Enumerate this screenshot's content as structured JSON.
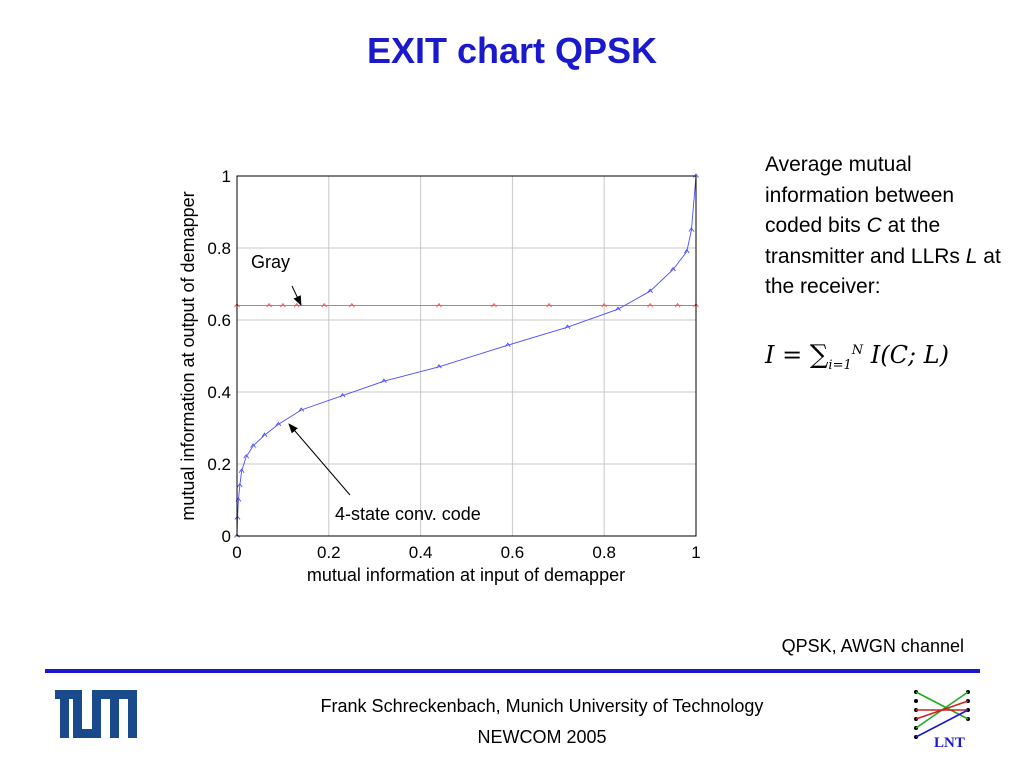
{
  "slide": {
    "title": "EXIT chart QPSK",
    "description": {
      "p1": "Average mutual information between coded bits ",
      "c": "C",
      "p2": " at the transmitter and LLRs ",
      "l": "L",
      "p3": " at the receiver:"
    },
    "formula": {
      "lhs": "I = ",
      "sum": "∑",
      "sub": "i=1",
      "sup": "N",
      "rhs": " I(C; L)"
    },
    "footnote": "QPSK, AWGN channel",
    "footer_line1": "Frank Schreckenbach, Munich University of Technology",
    "footer_line2": "NEWCOM 2005",
    "logo_right_text": "LNT"
  },
  "colors": {
    "title": "#1a1acc",
    "divider": "#1a1acc",
    "gray_series": "#ff4d4d",
    "code_series": "#4d4dff",
    "tum_logo": "#1a4a8c"
  },
  "chart_data": {
    "type": "line",
    "xlabel": "mutual information at input of demapper",
    "ylabel": "mutual information at output of demapper",
    "xlim": [
      0,
      1
    ],
    "ylim": [
      0,
      1
    ],
    "xticks": [
      "0",
      "0.2",
      "0.4",
      "0.6",
      "0.8",
      "1"
    ],
    "yticks": [
      "0",
      "0.2",
      "0.4",
      "0.6",
      "0.8",
      "1"
    ],
    "grid": true,
    "series": [
      {
        "name": "Gray",
        "x": [
          0,
          0.07,
          0.1,
          0.13,
          0.19,
          0.25,
          0.44,
          0.56,
          0.68,
          0.8,
          0.9,
          0.96,
          1.0
        ],
        "y": [
          0.64,
          0.64,
          0.64,
          0.64,
          0.64,
          0.64,
          0.64,
          0.64,
          0.64,
          0.64,
          0.64,
          0.64,
          0.64
        ]
      },
      {
        "name": "4-state conv. code",
        "x": [
          0,
          0.001,
          0.003,
          0.006,
          0.01,
          0.02,
          0.035,
          0.06,
          0.09,
          0.14,
          0.23,
          0.32,
          0.44,
          0.59,
          0.72,
          0.83,
          0.9,
          0.95,
          0.98,
          0.99,
          1.0
        ],
        "y": [
          0,
          0.05,
          0.1,
          0.14,
          0.18,
          0.22,
          0.25,
          0.28,
          0.31,
          0.35,
          0.39,
          0.43,
          0.47,
          0.53,
          0.58,
          0.63,
          0.68,
          0.74,
          0.79,
          0.85,
          1.0
        ]
      }
    ],
    "annotations": [
      "Gray",
      "4-state conv. code"
    ]
  }
}
